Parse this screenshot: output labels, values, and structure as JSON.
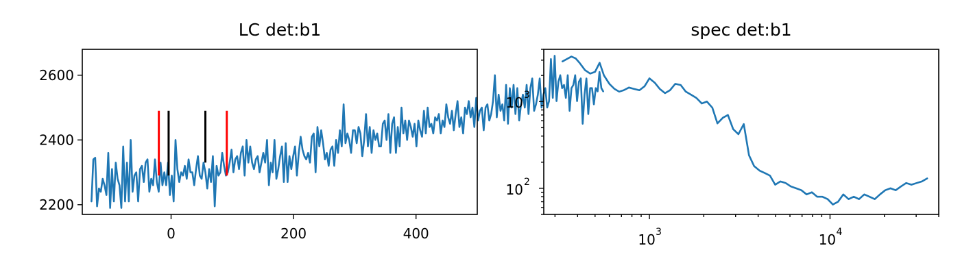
{
  "chart_data": [
    {
      "type": "line",
      "title": "LC det:b1",
      "xlabel": "",
      "ylabel": "",
      "xlim": [
        -145,
        500
      ],
      "ylim": [
        2170,
        2680
      ],
      "xticks": [
        0,
        200,
        400
      ],
      "yticks": [
        2200,
        2400,
        2600
      ],
      "grid": false,
      "series_color": "#1f77b4",
      "x_start": -130,
      "x_step": 3.05,
      "series": [
        {
          "values": [
            2210,
            2340,
            2345,
            2195,
            2250,
            2240,
            2280,
            2260,
            2230,
            2360,
            2190,
            2310,
            2210,
            2330,
            2280,
            2260,
            2190,
            2380,
            2210,
            2330,
            2210,
            2400,
            2240,
            2290,
            2300,
            2210,
            2310,
            2320,
            2270,
            2330,
            2340,
            2240,
            2280,
            2260,
            2340,
            2270,
            2240,
            2330,
            2260,
            2300,
            2260,
            2330,
            2230,
            2290,
            2210,
            2400,
            2310,
            2270,
            2300,
            2290,
            2320,
            2280,
            2340,
            2300,
            2300,
            2260,
            2310,
            2350,
            2290,
            2280,
            2330,
            2300,
            2250,
            2310,
            2270,
            2350,
            2195,
            2320,
            2290,
            2300,
            2360,
            2320,
            2290,
            2300,
            2330,
            2370,
            2300,
            2340,
            2350,
            2310,
            2360,
            2380,
            2290,
            2400,
            2330,
            2380,
            2330,
            2310,
            2340,
            2350,
            2300,
            2330,
            2360,
            2330,
            2400,
            2260,
            2330,
            2300,
            2400,
            2280,
            2310,
            2350,
            2380,
            2270,
            2390,
            2270,
            2350,
            2310,
            2350,
            2380,
            2290,
            2360,
            2410,
            2370,
            2350,
            2340,
            2360,
            2330,
            2410,
            2420,
            2300,
            2440,
            2380,
            2430,
            2390,
            2340,
            2360,
            2320,
            2370,
            2380,
            2320,
            2400,
            2360,
            2430,
            2380,
            2510,
            2390,
            2420,
            2400,
            2360,
            2430,
            2430,
            2390,
            2440,
            2420,
            2350,
            2400,
            2480,
            2380,
            2440,
            2360,
            2430,
            2400,
            2420,
            2380,
            2380,
            2450,
            2460,
            2400,
            2480,
            2360,
            2450,
            2470,
            2360,
            2440,
            2380,
            2500,
            2420,
            2460,
            2400,
            2460,
            2440,
            2410,
            2450,
            2380,
            2460,
            2430,
            2410,
            2490,
            2420,
            2500,
            2440,
            2450,
            2420,
            2470,
            2460,
            2480,
            2420,
            2460,
            2440,
            2510,
            2470,
            2450,
            2490,
            2430,
            2480,
            2520,
            2440,
            2470,
            2420,
            2500,
            2480,
            2520,
            2470,
            2500,
            2440,
            2530,
            2460,
            2490,
            2500,
            2430,
            2500,
            2510,
            2460,
            2480,
            2520,
            2600,
            2470,
            2540,
            2490,
            2510,
            2460,
            2570,
            2450,
            2560,
            2500,
            2570,
            2480,
            2560,
            2460,
            2510,
            2540,
            2500,
            2570,
            2480,
            2560,
            2590,
            2490,
            2510,
            2540,
            2590,
            2500,
            2540,
            2560,
            2500,
            2520,
            2650,
            2530,
            2660,
            2520,
            2580,
            2600,
            2560,
            2570,
            2530,
            2600,
            2490,
            2560,
            2570,
            2600,
            2520,
            2580,
            2590,
            2450,
            2540,
            2590,
            2480,
            2560,
            2560,
            2510,
            2560,
            2550,
            2610,
            2560,
            2550
          ]
        }
      ],
      "markers": [
        {
          "x": -20,
          "y0": 2290,
          "y1": 2490,
          "color": "#ff0000"
        },
        {
          "x": -4,
          "y0": 2290,
          "y1": 2490,
          "color": "#000000"
        },
        {
          "x": 56,
          "y0": 2330,
          "y1": 2490,
          "color": "#000000"
        },
        {
          "x": 91,
          "y0": 2290,
          "y1": 2490,
          "color": "#ff0000"
        }
      ]
    },
    {
      "type": "line",
      "title": "spec det:b1",
      "xlabel": "",
      "ylabel": "",
      "xscale": "log",
      "yscale": "log",
      "xlim": [
        260,
        40000
      ],
      "ylim": [
        50,
        4000
      ],
      "grid": false,
      "series_color": "#1f77b4",
      "series": [
        {
          "x": [
            330,
            350,
            370,
            390,
            410,
            440,
            470,
            500,
            530,
            560,
            600,
            640,
            680,
            720,
            770,
            820,
            880,
            940,
            1000,
            1070,
            1140,
            1220,
            1300,
            1390,
            1490,
            1590,
            1700,
            1820,
            1950,
            2080,
            2230,
            2380,
            2550,
            2720,
            2910,
            3110,
            3330,
            3560,
            3800,
            4070,
            4350,
            4650,
            4970,
            5310,
            5680,
            6070,
            6490,
            6940,
            7420,
            7930,
            8480,
            9070,
            9700,
            10370,
            11080,
            11850,
            12670,
            13540,
            14480,
            15480,
            16550,
            17690,
            18910,
            20220,
            21620,
            23110,
            24710,
            26410,
            28240,
            30190,
            32270,
            34500
          ],
          "y": [
            2900,
            3100,
            3300,
            3150,
            2800,
            2300,
            2100,
            2200,
            2800,
            2000,
            1600,
            1400,
            1300,
            1350,
            1450,
            1400,
            1350,
            1500,
            1850,
            1650,
            1400,
            1250,
            1350,
            1600,
            1550,
            1300,
            1200,
            1100,
            950,
            1000,
            850,
            560,
            650,
            700,
            480,
            420,
            550,
            240,
            180,
            160,
            150,
            140,
            110,
            120,
            115,
            105,
            100,
            95,
            85,
            90,
            80,
            80,
            75,
            65,
            70,
            85,
            75,
            80,
            75,
            85,
            80,
            75,
            85,
            95,
            100,
            95,
            105,
            115,
            110,
            115,
            120,
            130
          ]
        }
      ]
    }
  ]
}
